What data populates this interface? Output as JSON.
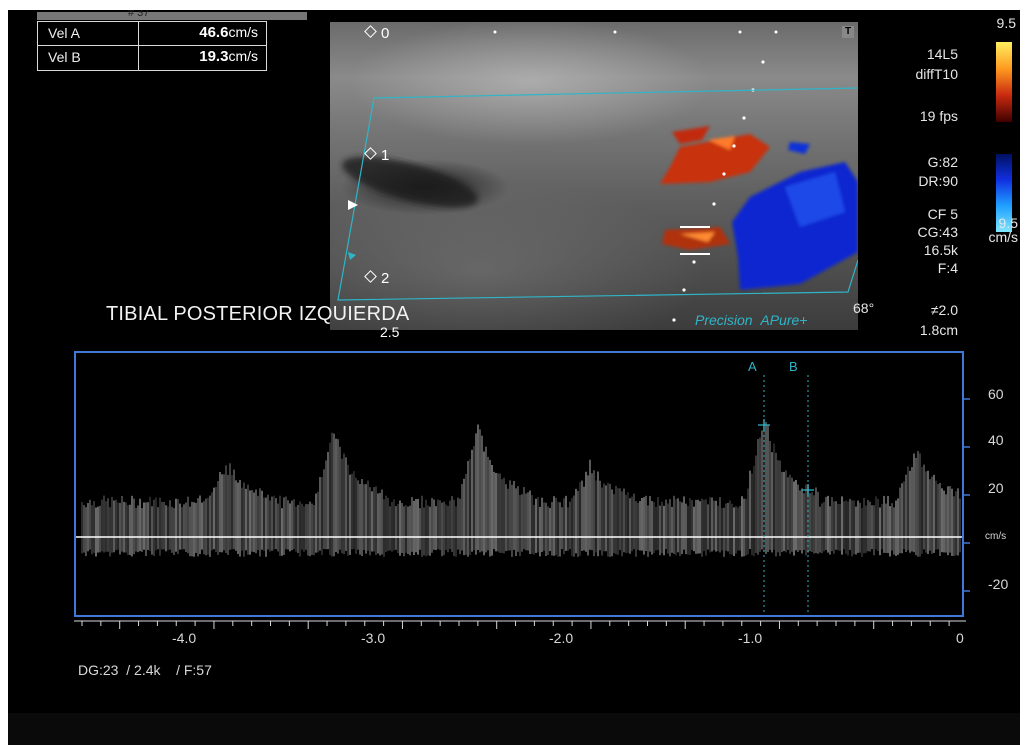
{
  "frame_tab": {
    "label": "# 37"
  },
  "measurements": [
    {
      "label": "Vel A",
      "value": "46.6",
      "unit": "cm/s"
    },
    {
      "label": "Vel B",
      "value": "19.3",
      "unit": "cm/s"
    }
  ],
  "bmode": {
    "depth_markers": [
      "0",
      "1",
      "2",
      "2.5"
    ],
    "t_icon": "T"
  },
  "readouts": {
    "probe": "14L5",
    "preset": "diffT10",
    "fps": "19 fps",
    "gain": "G:82",
    "dynamic_range": "DR:90",
    "color_freq": "CF 5",
    "color_gain": "CG:43",
    "prf": "16.5k",
    "filter": "F:4",
    "angle": "68°",
    "steer": "≠2.0",
    "gate": "1.8cm"
  },
  "color_scale": {
    "top_value": "9.5",
    "bottom_value": "9.5",
    "unit": "cm/s",
    "top_colors": [
      "#ffef60",
      "#ff9a20",
      "#c82a10",
      "#400000"
    ],
    "bottom_colors": [
      "#001060",
      "#1030e0",
      "#20a0ff",
      "#80e8ff"
    ]
  },
  "title": "TIBIAL POSTERIOR IZQUIERDA",
  "brand": {
    "precision": "Precision",
    "pure": "APure+"
  },
  "doppler": {
    "cursor_a": "A",
    "cursor_b": "B",
    "y_ticks": [
      "60",
      "40",
      "20",
      "cm/s",
      "-20"
    ],
    "x_ticks": [
      "-4.0",
      "-3.0",
      "-2.0",
      "-1.0",
      "0"
    ],
    "baseline_unit": "cm/s"
  },
  "footer": {
    "dg": "DG:23",
    "prf": "/ 2.4k",
    "filter": "/ F:57"
  },
  "colors": {
    "frame_blue": "#3f78d8",
    "cyan": "#2fb5c8"
  }
}
